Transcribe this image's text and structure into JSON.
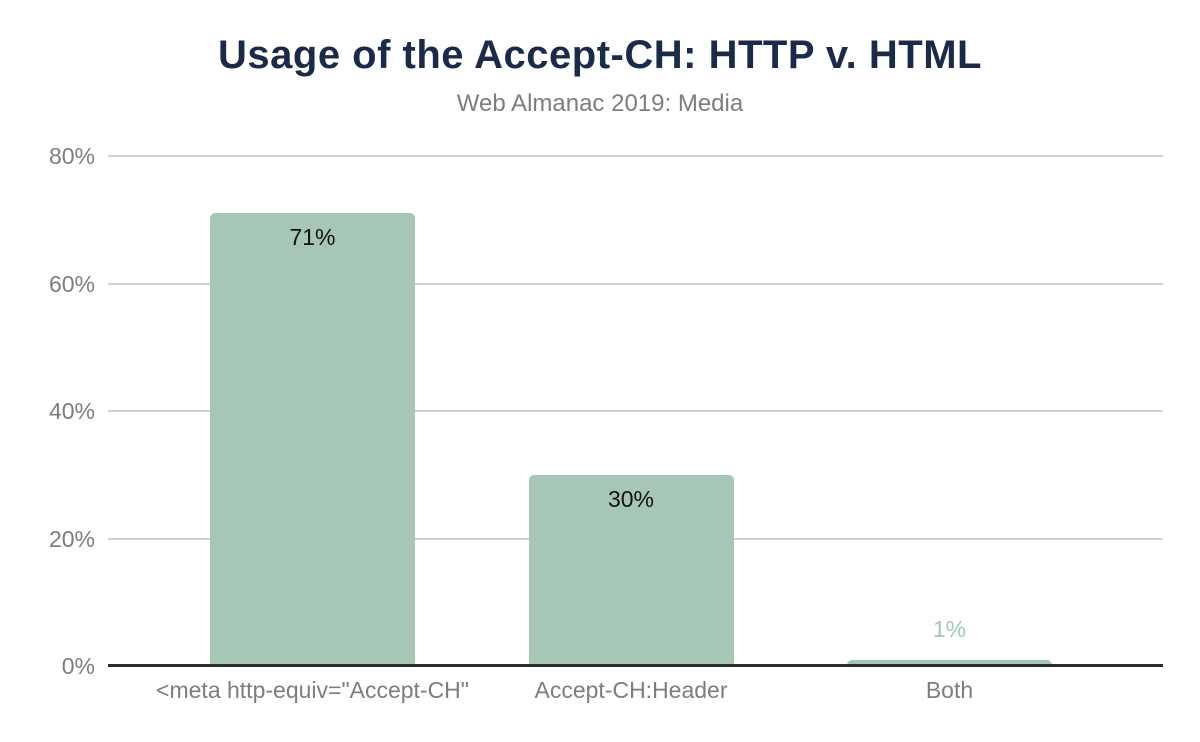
{
  "page": {
    "title": "Usage of the Accept-CH: HTTP v. HTML",
    "subtitle": "Web Almanac 2019: Media"
  },
  "chart_data": {
    "type": "bar",
    "title": "Usage of the Accept-CH: HTTP v. HTML",
    "subtitle": "Web Almanac 2019: Media",
    "categories": [
      "<meta http-equiv=\"Accept-CH\"",
      "Accept-CH:Header",
      "Both"
    ],
    "values": [
      71,
      30,
      1
    ],
    "value_labels": [
      "71%",
      "30%",
      "1%"
    ],
    "xlabel": "",
    "ylabel": "",
    "ylim": [
      0,
      80
    ],
    "yticks": [
      0,
      20,
      40,
      60,
      80
    ],
    "ytick_labels": [
      "0%",
      "20%",
      "40%",
      "60%",
      "80%"
    ],
    "grid": true,
    "legend": false,
    "colors": {
      "bar": "#a6c7b5",
      "title": "#1a2b4a",
      "axis_text": "#7d7d7d",
      "gridline": "#d2d2d2",
      "baseline": "#2d2d2d",
      "value_label_inside": "#111111",
      "value_label_outside": "#a6c7b5"
    }
  }
}
